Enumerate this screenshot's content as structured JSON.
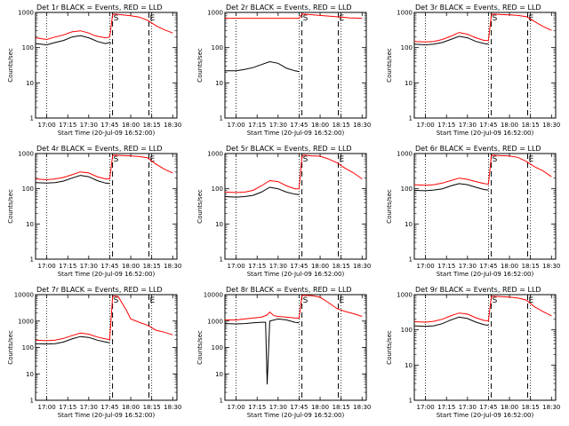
{
  "figure": {
    "x_tick_labels": [
      "17:00",
      "17:15",
      "17:30",
      "17:45",
      "18:00",
      "18:15",
      "18:30"
    ],
    "x_tick_hours": [
      17.0,
      17.25,
      17.5,
      17.75,
      18.0,
      18.25,
      18.5
    ],
    "x_range": [
      16.8667,
      18.55
    ],
    "x_axis_label": "Start Time (20-Jul-09 16:52:00)",
    "y_axis_label": "Counts/sec",
    "dotted_lines_at": [
      17.0,
      17.75,
      18.25
    ],
    "dashed_lines_at": [
      17.7833,
      18.2167
    ],
    "markers": [
      {
        "text": "S",
        "x": 17.7833
      },
      {
        "text": "E",
        "x": 18.2167
      }
    ],
    "colors": {
      "events": "#000000",
      "lld": "#ff0000"
    }
  },
  "chart_data": [
    {
      "type": "line",
      "title": "Det 1r BLACK = Events, RED = LLD",
      "ylim": [
        1,
        1000
      ],
      "yscale": "log",
      "yticks": [
        "1",
        "10",
        "100",
        "1000"
      ],
      "series": [
        {
          "name": "BLACK = Events",
          "x": [
            16.8667,
            17.0,
            17.1,
            17.2,
            17.3,
            17.4,
            17.5,
            17.55,
            17.6,
            17.7,
            17.75,
            17.7667,
            17.7667,
            17.8,
            17.85
          ],
          "y": [
            130,
            120,
            140,
            160,
            200,
            220,
            190,
            170,
            150,
            130,
            140,
            130,
            null,
            null,
            null
          ]
        },
        {
          "name": "RED = LLD",
          "x": [
            16.8667,
            17.0,
            17.1,
            17.2,
            17.3,
            17.4,
            17.5,
            17.55,
            17.6,
            17.7,
            17.75,
            17.7833,
            17.8,
            17.9,
            18.0,
            18.1,
            18.2,
            18.3,
            18.4,
            18.5
          ],
          "y": [
            190,
            170,
            200,
            230,
            280,
            300,
            260,
            230,
            210,
            190,
            200,
            850,
            900,
            850,
            800,
            740,
            600,
            420,
            320,
            260
          ]
        }
      ]
    },
    {
      "type": "line",
      "title": "Det 2r BLACK = Events, RED = LLD",
      "ylim": [
        1,
        1000
      ],
      "yscale": "log",
      "yticks": [
        "1",
        "10",
        "100",
        "1000"
      ],
      "series": [
        {
          "name": "BLACK = Events",
          "x": [
            16.8667,
            17.0,
            17.1,
            17.2,
            17.3,
            17.4,
            17.5,
            17.6,
            17.7,
            17.75
          ],
          "y": [
            22,
            22,
            24,
            27,
            33,
            40,
            36,
            26,
            22,
            21
          ]
        },
        {
          "name": "RED = LLD",
          "x": [
            16.8667,
            17.0,
            17.25,
            17.5,
            17.75,
            17.7833,
            18.0,
            18.25,
            18.35,
            18.5
          ],
          "y": [
            680,
            680,
            680,
            680,
            680,
            900,
            820,
            740,
            700,
            680
          ]
        }
      ]
    },
    {
      "type": "line",
      "title": "Det 3r BLACK = Events, RED = LLD",
      "ylim": [
        1,
        1000
      ],
      "yscale": "log",
      "yticks": [
        "1",
        "10",
        "100",
        "1000"
      ],
      "series": [
        {
          "name": "BLACK = Events",
          "x": [
            16.8667,
            17.0,
            17.1,
            17.2,
            17.3,
            17.4,
            17.5,
            17.6,
            17.7,
            17.75
          ],
          "y": [
            125,
            120,
            125,
            140,
            170,
            210,
            190,
            150,
            130,
            125
          ]
        },
        {
          "name": "RED = LLD",
          "x": [
            16.8667,
            17.0,
            17.1,
            17.2,
            17.3,
            17.4,
            17.5,
            17.6,
            17.7,
            17.75,
            17.7833,
            17.8,
            17.9,
            18.0,
            18.1,
            18.2,
            18.3,
            18.4,
            18.5
          ],
          "y": [
            150,
            145,
            150,
            170,
            210,
            270,
            240,
            190,
            160,
            160,
            800,
            900,
            870,
            850,
            820,
            760,
            550,
            400,
            310
          ]
        }
      ]
    },
    {
      "type": "line",
      "title": "Det 4r BLACK = Events, RED = LLD",
      "ylim": [
        1,
        1000
      ],
      "yscale": "log",
      "yticks": [
        "1",
        "10",
        "100",
        "1000"
      ],
      "series": [
        {
          "name": "BLACK = Events",
          "x": [
            16.8667,
            17.0,
            17.1,
            17.2,
            17.3,
            17.4,
            17.5,
            17.6,
            17.7,
            17.75
          ],
          "y": [
            150,
            145,
            150,
            165,
            200,
            240,
            220,
            170,
            145,
            140
          ]
        },
        {
          "name": "RED = LLD",
          "x": [
            16.8667,
            17.0,
            17.1,
            17.2,
            17.3,
            17.4,
            17.5,
            17.6,
            17.7,
            17.75,
            17.7833,
            17.8,
            17.9,
            18.0,
            18.1,
            18.2,
            18.3,
            18.4,
            18.5
          ],
          "y": [
            190,
            180,
            190,
            210,
            250,
            300,
            280,
            220,
            190,
            190,
            850,
            900,
            880,
            860,
            820,
            760,
            500,
            360,
            280
          ]
        }
      ]
    },
    {
      "type": "line",
      "title": "Det 5r BLACK = Events, RED = LLD",
      "ylim": [
        1,
        1000
      ],
      "yscale": "log",
      "yticks": [
        "1",
        "10",
        "100",
        "1000"
      ],
      "series": [
        {
          "name": "BLACK = Events",
          "x": [
            16.8667,
            17.0,
            17.1,
            17.2,
            17.3,
            17.4,
            17.5,
            17.6,
            17.7,
            17.75
          ],
          "y": [
            60,
            58,
            60,
            65,
            80,
            110,
            100,
            80,
            70,
            68
          ]
        },
        {
          "name": "RED = LLD",
          "x": [
            16.8667,
            17.0,
            17.1,
            17.2,
            17.3,
            17.4,
            17.5,
            17.6,
            17.7,
            17.75,
            17.7833,
            17.8,
            17.9,
            18.0,
            18.1,
            18.2,
            18.3,
            18.4,
            18.5
          ],
          "y": [
            80,
            78,
            80,
            90,
            120,
            170,
            160,
            120,
            100,
            100,
            800,
            900,
            860,
            840,
            700,
            550,
            380,
            280,
            190
          ]
        }
      ]
    },
    {
      "type": "line",
      "title": "Det 6r BLACK = Events, RED = LLD",
      "ylim": [
        1,
        1000
      ],
      "yscale": "log",
      "yticks": [
        "1",
        "10",
        "100",
        "1000"
      ],
      "series": [
        {
          "name": "BLACK = Events",
          "x": [
            16.8667,
            17.0,
            17.1,
            17.2,
            17.3,
            17.4,
            17.5,
            17.6,
            17.7,
            17.75
          ],
          "y": [
            90,
            88,
            92,
            100,
            120,
            140,
            130,
            110,
            95,
            92
          ]
        },
        {
          "name": "RED = LLD",
          "x": [
            16.8667,
            17.0,
            17.1,
            17.2,
            17.3,
            17.4,
            17.5,
            17.6,
            17.7,
            17.75,
            17.7833,
            17.8,
            17.9,
            18.0,
            18.1,
            18.2,
            18.3,
            18.4,
            18.5
          ],
          "y": [
            130,
            125,
            130,
            145,
            170,
            200,
            185,
            160,
            140,
            135,
            850,
            900,
            870,
            850,
            780,
            600,
            420,
            320,
            220
          ]
        }
      ]
    },
    {
      "type": "line",
      "title": "Det 7r BLACK = Events, RED = LLD",
      "ylim": [
        1,
        10000
      ],
      "yscale": "log",
      "yticks": [
        "1",
        "10",
        "100",
        "1000",
        "10000"
      ],
      "series": [
        {
          "name": "BLACK = Events",
          "x": [
            16.8667,
            17.0,
            17.1,
            17.2,
            17.3,
            17.4,
            17.5,
            17.6,
            17.7,
            17.75
          ],
          "y": [
            140,
            135,
            140,
            160,
            210,
            260,
            240,
            190,
            160,
            150
          ]
        },
        {
          "name": "RED = LLD",
          "x": [
            16.8667,
            17.0,
            17.1,
            17.2,
            17.3,
            17.4,
            17.5,
            17.6,
            17.7,
            17.75,
            17.7833,
            17.8,
            17.85,
            17.95,
            18.0,
            18.1,
            18.2,
            18.3,
            18.4,
            18.5
          ],
          "y": [
            190,
            180,
            190,
            220,
            280,
            350,
            320,
            250,
            210,
            200,
            8000,
            9000,
            8500,
            2500,
            1200,
            900,
            700,
            450,
            380,
            300
          ]
        }
      ]
    },
    {
      "type": "line",
      "title": "Det 8r BLACK = Events, RED = LLD",
      "ylim": [
        1,
        10000
      ],
      "yscale": "log",
      "yticks": [
        "1",
        "10",
        "100",
        "1000",
        "10000"
      ],
      "series": [
        {
          "name": "BLACK = Events",
          "x": [
            16.8667,
            17.0,
            17.1,
            17.2,
            17.3,
            17.35,
            17.37,
            17.4,
            17.5,
            17.6,
            17.7,
            17.75
          ],
          "y": [
            800,
            780,
            800,
            850,
            900,
            900,
            4,
            1000,
            1200,
            1100,
            900,
            850
          ]
        },
        {
          "name": "RED = LLD",
          "x": [
            16.8667,
            17.0,
            17.1,
            17.2,
            17.3,
            17.37,
            17.4,
            17.45,
            17.5,
            17.6,
            17.7,
            17.75,
            17.7833,
            17.8,
            17.9,
            18.0,
            18.1,
            18.2,
            18.3,
            18.4,
            18.5
          ],
          "y": [
            1100,
            1100,
            1200,
            1300,
            1400,
            1700,
            2200,
            1600,
            1500,
            1400,
            1300,
            1300,
            9000,
            9500,
            9200,
            8000,
            5000,
            3000,
            2300,
            1900,
            1500
          ]
        }
      ]
    },
    {
      "type": "line",
      "title": "Det 9r BLACK = Events, RED = LLD",
      "ylim": [
        1,
        1000
      ],
      "yscale": "log",
      "yticks": [
        "1",
        "10",
        "100",
        "1000"
      ],
      "series": [
        {
          "name": "BLACK = Events",
          "x": [
            16.8667,
            17.0,
            17.1,
            17.2,
            17.3,
            17.4,
            17.5,
            17.6,
            17.7,
            17.75
          ],
          "y": [
            130,
            125,
            130,
            150,
            190,
            230,
            210,
            165,
            140,
            135
          ]
        },
        {
          "name": "RED = LLD",
          "x": [
            16.8667,
            17.0,
            17.1,
            17.2,
            17.3,
            17.4,
            17.5,
            17.6,
            17.7,
            17.75,
            17.7833,
            17.8,
            17.9,
            18.0,
            18.1,
            18.2,
            18.3,
            18.4,
            18.5
          ],
          "y": [
            170,
            165,
            175,
            200,
            250,
            300,
            280,
            220,
            185,
            180,
            850,
            900,
            880,
            850,
            800,
            700,
            450,
            330,
            250
          ]
        }
      ]
    }
  ]
}
